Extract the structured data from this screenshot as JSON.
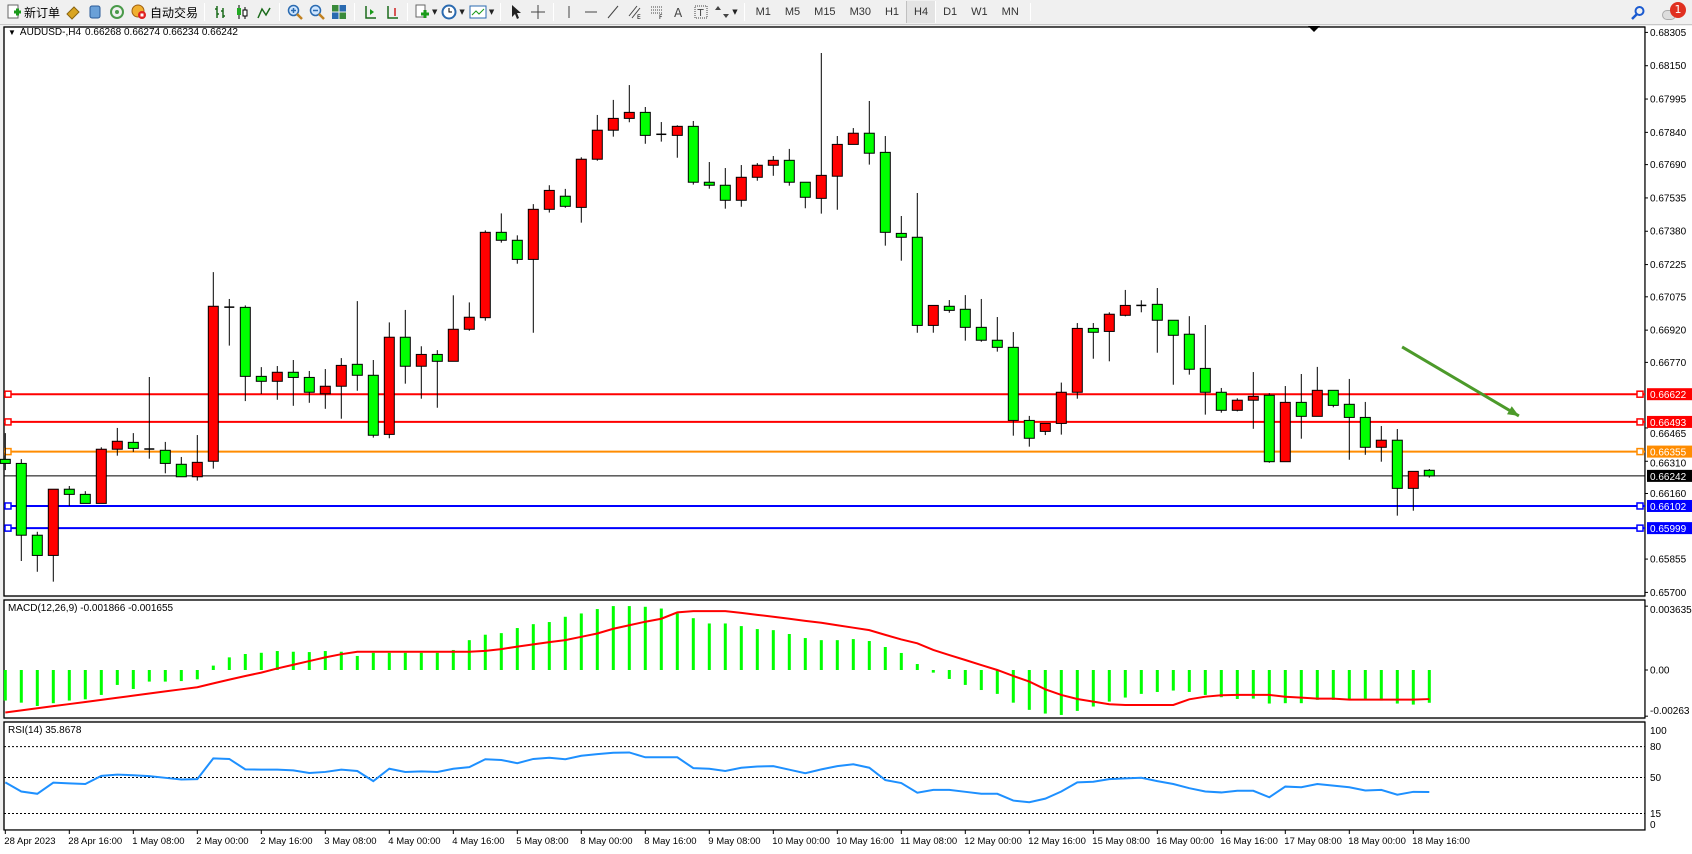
{
  "toolbar": {
    "new_order_label": "新订单",
    "auto_trading_label": "自动交易",
    "timeframes": [
      "M1",
      "M5",
      "M15",
      "M30",
      "H1",
      "H4",
      "D1",
      "W1",
      "MN"
    ],
    "selected_timeframe": "H4",
    "notification_count": "1"
  },
  "chart_header": {
    "symbol": "AUDUSD-,H4",
    "ohlc": "0.66268 0.66274 0.66234 0.66242"
  },
  "macd_label": "MACD(12,26,9) -0.001866 -0.001655",
  "rsi_label": "RSI(14) 35.8678",
  "colors": {
    "bull": "#ff0000",
    "bear": "#00ff00",
    "macd_hist": "#00ff00",
    "macd_signal": "#ff0000",
    "rsi": "#1e90ff",
    "arrow": "#4c9a2a"
  },
  "chart_data": [
    {
      "type": "candlestick",
      "symbol": "AUDUSD-",
      "timeframe": "H4",
      "ylim": [
        0.657,
        0.68305
      ],
      "y_ticks": [
        "0.68305",
        "0.68150",
        "0.67995",
        "0.67840",
        "0.67690",
        "0.67535",
        "0.67380",
        "0.67225",
        "0.67075",
        "0.66920",
        "0.66770",
        "0.66465",
        "0.66310",
        "0.66160",
        "0.65855",
        "0.65700"
      ],
      "x_ticks": [
        "28 Apr 2023",
        "28 Apr 16:00",
        "1 May 08:00",
        "2 May 00:00",
        "2 May 16:00",
        "3 May 08:00",
        "4 May 00:00",
        "4 May 16:00",
        "5 May 08:00",
        "8 May 00:00",
        "8 May 16:00",
        "9 May 08:00",
        "10 May 00:00",
        "10 May 16:00",
        "11 May 08:00",
        "12 May 00:00",
        "12 May 16:00",
        "15 May 08:00",
        "16 May 00:00",
        "16 May 16:00",
        "17 May 08:00",
        "18 May 00:00",
        "18 May 16:00"
      ],
      "x_tick_every_bars": 4,
      "ohlc_fields": [
        "open",
        "high",
        "low",
        "close"
      ],
      "candles": [
        [
          0.66319,
          0.66441,
          0.66269,
          0.663
        ],
        [
          0.663,
          0.6632,
          0.65846,
          0.65966
        ],
        [
          0.65966,
          0.65982,
          0.65796,
          0.65872
        ],
        [
          0.65872,
          0.66181,
          0.6575,
          0.6618
        ],
        [
          0.6618,
          0.66195,
          0.66102,
          0.66156
        ],
        [
          0.66156,
          0.66171,
          0.66114,
          0.66114
        ],
        [
          0.66114,
          0.66375,
          0.66114,
          0.66366
        ],
        [
          0.66366,
          0.66465,
          0.66336,
          0.66403
        ],
        [
          0.66398,
          0.66441,
          0.66354,
          0.6637
        ],
        [
          0.66367,
          0.66702,
          0.66322,
          0.66367
        ],
        [
          0.66361,
          0.664,
          0.66254,
          0.663
        ],
        [
          0.66296,
          0.6633,
          0.66238,
          0.66238
        ],
        [
          0.66238,
          0.66432,
          0.6622,
          0.66305
        ],
        [
          0.6631,
          0.6719,
          0.66276,
          0.67031
        ],
        [
          0.67027,
          0.67065,
          0.66848,
          0.67027
        ],
        [
          0.67026,
          0.67035,
          0.6659,
          0.66705
        ],
        [
          0.66705,
          0.66748,
          0.66623,
          0.66682
        ],
        [
          0.66682,
          0.66753,
          0.66596,
          0.66724
        ],
        [
          0.66724,
          0.66781,
          0.66568,
          0.667
        ],
        [
          0.667,
          0.6673,
          0.66582,
          0.66631
        ],
        [
          0.66624,
          0.66739,
          0.66554,
          0.66659
        ],
        [
          0.66659,
          0.6679,
          0.66508,
          0.66756
        ],
        [
          0.66761,
          0.67055,
          0.66638,
          0.6671
        ],
        [
          0.6671,
          0.66781,
          0.6642,
          0.66431
        ],
        [
          0.66435,
          0.66956,
          0.66417,
          0.66887
        ],
        [
          0.66887,
          0.67014,
          0.66671,
          0.66752
        ],
        [
          0.66752,
          0.66845,
          0.66601,
          0.66807
        ],
        [
          0.66807,
          0.66827,
          0.66559,
          0.66775
        ],
        [
          0.66775,
          0.67082,
          0.66775,
          0.66924
        ],
        [
          0.66924,
          0.67049,
          0.66917,
          0.6698
        ],
        [
          0.66978,
          0.67384,
          0.66964,
          0.67375
        ],
        [
          0.67375,
          0.67463,
          0.67327,
          0.67338
        ],
        [
          0.67338,
          0.67361,
          0.67229,
          0.67249
        ],
        [
          0.67249,
          0.67506,
          0.66908,
          0.67482
        ],
        [
          0.67482,
          0.67594,
          0.67467,
          0.6757
        ],
        [
          0.67543,
          0.67577,
          0.67489,
          0.67496
        ],
        [
          0.67491,
          0.67724,
          0.6742,
          0.67715
        ],
        [
          0.67715,
          0.67921,
          0.67708,
          0.6785
        ],
        [
          0.6785,
          0.67991,
          0.6782,
          0.67905
        ],
        [
          0.67905,
          0.6806,
          0.67887,
          0.67933
        ],
        [
          0.67933,
          0.67958,
          0.67787,
          0.67826
        ],
        [
          0.67831,
          0.67888,
          0.67797,
          0.67831
        ],
        [
          0.67826,
          0.67873,
          0.67722,
          0.67868
        ],
        [
          0.67868,
          0.67893,
          0.67597,
          0.67608
        ],
        [
          0.67608,
          0.67702,
          0.67578,
          0.67594
        ],
        [
          0.67594,
          0.67674,
          0.67485,
          0.67524
        ],
        [
          0.67524,
          0.67688,
          0.67494,
          0.67631
        ],
        [
          0.67631,
          0.67697,
          0.67615,
          0.67687
        ],
        [
          0.67687,
          0.6773,
          0.67638,
          0.6771
        ],
        [
          0.6771,
          0.67763,
          0.67592,
          0.67608
        ],
        [
          0.67608,
          0.67608,
          0.67487,
          0.67538
        ],
        [
          0.67533,
          0.68209,
          0.67462,
          0.6764
        ],
        [
          0.67636,
          0.67823,
          0.6748,
          0.67784
        ],
        [
          0.67784,
          0.6786,
          0.67784,
          0.67836
        ],
        [
          0.67836,
          0.67986,
          0.6769,
          0.67743
        ],
        [
          0.67747,
          0.67823,
          0.67313,
          0.67375
        ],
        [
          0.6737,
          0.67451,
          0.67243,
          0.67352
        ],
        [
          0.67352,
          0.67558,
          0.66908,
          0.66942
        ],
        [
          0.66942,
          0.67035,
          0.66908,
          0.67035
        ],
        [
          0.67031,
          0.6706,
          0.67001,
          0.67012
        ],
        [
          0.67017,
          0.67083,
          0.66871,
          0.66933
        ],
        [
          0.66933,
          0.67065,
          0.66866,
          0.66873
        ],
        [
          0.66873,
          0.66981,
          0.6682,
          0.6684
        ],
        [
          0.6684,
          0.66911,
          0.66429,
          0.665
        ],
        [
          0.665,
          0.66521,
          0.66378,
          0.66417
        ],
        [
          0.66449,
          0.66486,
          0.66432,
          0.66486
        ],
        [
          0.66486,
          0.66676,
          0.66434,
          0.66631
        ],
        [
          0.66631,
          0.66953,
          0.66601,
          0.66928
        ],
        [
          0.66928,
          0.66953,
          0.66787,
          0.6691
        ],
        [
          0.66914,
          0.67003,
          0.66775,
          0.66994
        ],
        [
          0.66989,
          0.67107,
          0.66984,
          0.67035
        ],
        [
          0.67035,
          0.67059,
          0.67003,
          0.67035
        ],
        [
          0.6704,
          0.67116,
          0.66815,
          0.66966
        ],
        [
          0.66966,
          0.66966,
          0.66666,
          0.66896
        ],
        [
          0.66901,
          0.66985,
          0.66713,
          0.66738
        ],
        [
          0.66742,
          0.66944,
          0.66527,
          0.66631
        ],
        [
          0.66631,
          0.66651,
          0.66536,
          0.66547
        ],
        [
          0.66547,
          0.66603,
          0.66542,
          0.66594
        ],
        [
          0.66594,
          0.66725,
          0.66461,
          0.66612
        ],
        [
          0.66617,
          0.66627,
          0.66303,
          0.66308
        ],
        [
          0.66308,
          0.6666,
          0.66308,
          0.66584
        ],
        [
          0.66584,
          0.66716,
          0.66415,
          0.66519
        ],
        [
          0.66519,
          0.66749,
          0.66519,
          0.6664
        ],
        [
          0.6664,
          0.6664,
          0.66561,
          0.6657
        ],
        [
          0.66575,
          0.66693,
          0.66317,
          0.66514
        ],
        [
          0.66514,
          0.66586,
          0.6634,
          0.66375
        ],
        [
          0.66375,
          0.66474,
          0.66308,
          0.66408
        ],
        [
          0.66408,
          0.6646,
          0.66057,
          0.66184
        ],
        [
          0.66184,
          0.66263,
          0.6608,
          0.66263
        ],
        [
          0.66268,
          0.66274,
          0.66234,
          0.66242
        ]
      ],
      "current_price": {
        "value": 0.66242,
        "label": "0.66242",
        "color": "#000000"
      },
      "horizontal_lines": [
        {
          "value": 0.66622,
          "label": "0.66622",
          "color": "#ff0000"
        },
        {
          "value": 0.66493,
          "label": "0.66493",
          "color": "#ff0000"
        },
        {
          "value": 0.66355,
          "label": "0.66355",
          "color": "#ff8c00"
        },
        {
          "value": 0.66102,
          "label": "0.66102",
          "color": "#0000ff"
        },
        {
          "value": 0.65999,
          "label": "0.65999",
          "color": "#0000ff"
        }
      ],
      "annotation": {
        "type": "arrow",
        "color": "#4c9a2a",
        "from": {
          "bar": 87.3,
          "price": 0.66842
        },
        "to": {
          "bar": 94.6,
          "price": 0.66521
        }
      }
    },
    {
      "type": "bar+line",
      "name": "MACD(12,26,9)",
      "ylim": [
        -0.00263,
        0.003635
      ],
      "y_ticks": [
        "0.003635",
        "0.00",
        "-0.00263"
      ],
      "histogram": [
        -0.00174,
        -0.00186,
        -0.00205,
        -0.00189,
        -0.00174,
        -0.00167,
        -0.00142,
        -0.00085,
        -0.00108,
        -0.00066,
        -0.00066,
        -0.00063,
        -0.00053,
        0.00025,
        0.00072,
        0.00091,
        0.00098,
        0.00108,
        0.00104,
        0.00102,
        0.00108,
        0.00104,
        0.0008,
        0.00098,
        0.00098,
        0.00098,
        0.00098,
        0.00098,
        0.00114,
        0.0017,
        0.00201,
        0.0021,
        0.00239,
        0.00261,
        0.00273,
        0.00303,
        0.00322,
        0.00347,
        0.00364,
        0.00364,
        0.0036,
        0.0035,
        0.00322,
        0.00295,
        0.00265,
        0.00265,
        0.0025,
        0.00233,
        0.00227,
        0.00205,
        0.00182,
        0.0017,
        0.0017,
        0.00176,
        0.00165,
        0.00131,
        0.00097,
        0.00034,
        -0.00015,
        -0.00051,
        -0.00085,
        -0.00114,
        -0.00136,
        -0.00186,
        -0.00227,
        -0.00248,
        -0.00256,
        -0.00233,
        -0.00208,
        -0.0018,
        -0.00157,
        -0.00136,
        -0.00125,
        -0.00117,
        -0.00125,
        -0.00142,
        -0.00155,
        -0.00165,
        -0.00163,
        -0.00191,
        -0.00189,
        -0.00189,
        -0.0017,
        -0.0017,
        -0.0017,
        -0.00169,
        -0.00174,
        -0.00191,
        -0.00197,
        -0.001866
      ],
      "signal": [
        -0.00242,
        -0.0023,
        -0.00218,
        -0.00206,
        -0.00194,
        -0.00182,
        -0.0017,
        -0.00158,
        -0.00146,
        -0.00134,
        -0.00122,
        -0.0011,
        -0.00098,
        -0.00076,
        -0.00055,
        -0.00034,
        -0.00015,
        9e-05,
        0.0003,
        0.00051,
        0.00072,
        0.0009,
        0.00104,
        0.00104,
        0.00104,
        0.00104,
        0.00104,
        0.00104,
        0.00104,
        0.00104,
        0.00109,
        0.00119,
        0.00133,
        0.00146,
        0.00159,
        0.0017,
        0.00189,
        0.00208,
        0.00235,
        0.00255,
        0.00275,
        0.00292,
        0.00328,
        0.00335,
        0.00335,
        0.00335,
        0.00325,
        0.00314,
        0.00303,
        0.00292,
        0.0028,
        0.00269,
        0.00255,
        0.00241,
        0.00227,
        0.002,
        0.00174,
        0.00152,
        0.00114,
        0.00085,
        0.00057,
        0.00028,
        0.0,
        -0.00034,
        -0.00066,
        -0.0011,
        -0.00142,
        -0.00165,
        -0.0018,
        -0.00195,
        -0.00199,
        -0.00199,
        -0.00199,
        -0.00199,
        -0.00167,
        -0.00152,
        -0.00144,
        -0.00142,
        -0.00142,
        -0.00142,
        -0.00152,
        -0.00157,
        -0.00163,
        -0.00163,
        -0.00169,
        -0.00169,
        -0.00169,
        -0.00169,
        -0.00169,
        -0.001655
      ]
    },
    {
      "type": "line",
      "name": "RSI(14)",
      "ylim": [
        0,
        100
      ],
      "y_ticks": [
        "100",
        "80",
        "50",
        "15",
        "0"
      ],
      "levels": [
        80,
        50,
        15
      ],
      "values": [
        45.3,
        36.4,
        34.2,
        45,
        44.3,
        43.7,
        51.6,
        52.8,
        52.2,
        51.3,
        49.7,
        48.1,
        48.4,
        68.6,
        68,
        57.9,
        57.6,
        57.6,
        56.9,
        54.4,
        55.4,
        57.6,
        56.3,
        46.5,
        58.5,
        55.4,
        56,
        55.4,
        58.5,
        60.1,
        67.7,
        67,
        63.9,
        68,
        69.2,
        67.7,
        71.1,
        72.7,
        74,
        74.3,
        69.6,
        69.6,
        69.6,
        59.1,
        58.5,
        56.3,
        59.5,
        60.7,
        61,
        57.6,
        54.1,
        57.9,
        61,
        62.9,
        59.5,
        47.5,
        44.6,
        35.2,
        38,
        38,
        36.1,
        34.2,
        34.2,
        27.6,
        26,
        29.5,
        36.4,
        45.3,
        45.9,
        48.4,
        49.1,
        49.7,
        46.5,
        43.7,
        39.6,
        36.4,
        35.5,
        37.1,
        37.1,
        30.8,
        41.2,
        40.5,
        43.7,
        42.1,
        40.5,
        37.4,
        38,
        33.3,
        36.1,
        35.8678
      ]
    }
  ]
}
